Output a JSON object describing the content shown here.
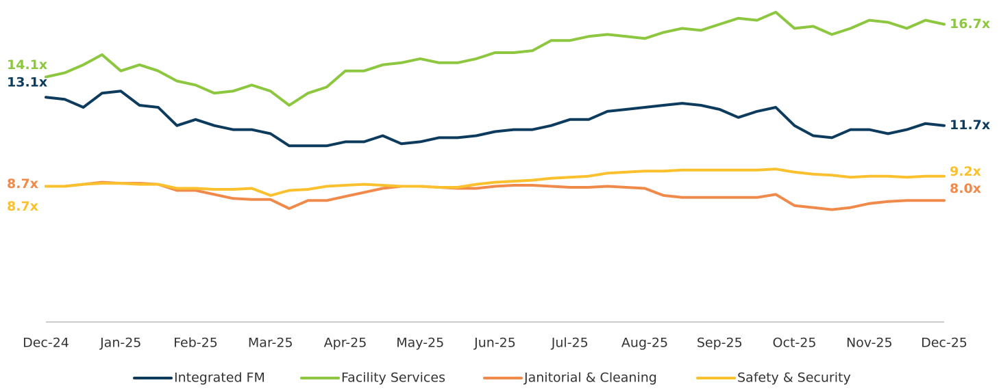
{
  "chart_data": {
    "type": "line",
    "categories": [
      "Dec-24",
      null,
      null,
      null,
      "Jan-25",
      null,
      null,
      null,
      "Feb-25",
      null,
      null,
      null,
      "Mar-25",
      null,
      null,
      null,
      "Apr-25",
      null,
      null,
      null,
      "May-25",
      null,
      null,
      null,
      "Jun-25",
      null,
      null,
      null,
      "Jul-25",
      null,
      null,
      null,
      "Aug-25",
      null,
      null,
      null,
      "Sep-25",
      null,
      null,
      null,
      "Oct-25",
      null,
      null,
      null,
      "Nov-25",
      null,
      null,
      null,
      "Dec-25"
    ],
    "ylim": [
      2,
      17.9
    ],
    "legend": "bottom",
    "series": [
      {
        "name": "Integrated FM",
        "color": "#0d3b5e",
        "start_label": "13.1x",
        "end_label": "11.7x",
        "values": [
          13.1,
          13.0,
          12.6,
          13.3,
          13.4,
          12.7,
          12.6,
          11.7,
          12.0,
          11.7,
          11.5,
          11.5,
          11.3,
          10.7,
          10.7,
          10.7,
          10.9,
          10.9,
          11.2,
          10.8,
          10.9,
          11.1,
          11.1,
          11.2,
          11.4,
          11.5,
          11.5,
          11.7,
          12.0,
          12.0,
          12.4,
          12.5,
          12.6,
          12.7,
          12.8,
          12.7,
          12.5,
          12.1,
          12.4,
          12.6,
          11.7,
          11.2,
          11.1,
          11.5,
          11.5,
          11.3,
          11.5,
          11.8,
          11.7
        ]
      },
      {
        "name": "Facility Services",
        "color": "#8dc63f",
        "start_label": "14.1x",
        "end_label": "16.7x",
        "values": [
          14.1,
          14.3,
          14.7,
          15.2,
          14.4,
          14.7,
          14.4,
          13.9,
          13.7,
          13.3,
          13.4,
          13.7,
          13.4,
          12.7,
          13.3,
          13.6,
          14.4,
          14.4,
          14.7,
          14.8,
          15.0,
          14.8,
          14.8,
          15.0,
          15.3,
          15.3,
          15.4,
          15.9,
          15.9,
          16.1,
          16.2,
          16.1,
          16.0,
          16.3,
          16.5,
          16.4,
          16.7,
          17.0,
          16.9,
          17.3,
          16.5,
          16.6,
          16.2,
          16.5,
          16.9,
          16.8,
          16.5,
          16.9,
          16.7
        ]
      },
      {
        "name": "Janitorial & Cleaning",
        "color": "#f08a4b",
        "start_label": "8.7x",
        "end_label": "8.0x",
        "values": [
          8.7,
          8.7,
          8.8,
          8.9,
          8.85,
          8.85,
          8.8,
          8.5,
          8.5,
          8.3,
          8.1,
          8.05,
          8.05,
          7.6,
          8.0,
          8.0,
          8.2,
          8.4,
          8.6,
          8.7,
          8.7,
          8.65,
          8.6,
          8.6,
          8.7,
          8.75,
          8.75,
          8.7,
          8.65,
          8.65,
          8.7,
          8.65,
          8.6,
          8.25,
          8.15,
          8.15,
          8.15,
          8.15,
          8.15,
          8.3,
          7.75,
          7.65,
          7.55,
          7.65,
          7.85,
          7.95,
          8.0,
          8.0,
          8.0
        ]
      },
      {
        "name": "Safety & Security",
        "color": "#fbc02d",
        "start_label": "8.7x",
        "end_label": "9.2x",
        "values": [
          8.7,
          8.7,
          8.8,
          8.85,
          8.85,
          8.8,
          8.8,
          8.6,
          8.6,
          8.55,
          8.55,
          8.6,
          8.25,
          8.5,
          8.55,
          8.7,
          8.75,
          8.8,
          8.75,
          8.7,
          8.7,
          8.65,
          8.65,
          8.8,
          8.9,
          8.95,
          9.0,
          9.1,
          9.15,
          9.2,
          9.35,
          9.4,
          9.45,
          9.45,
          9.5,
          9.5,
          9.5,
          9.5,
          9.5,
          9.55,
          9.4,
          9.3,
          9.25,
          9.15,
          9.2,
          9.2,
          9.15,
          9.2,
          9.2
        ]
      }
    ]
  }
}
